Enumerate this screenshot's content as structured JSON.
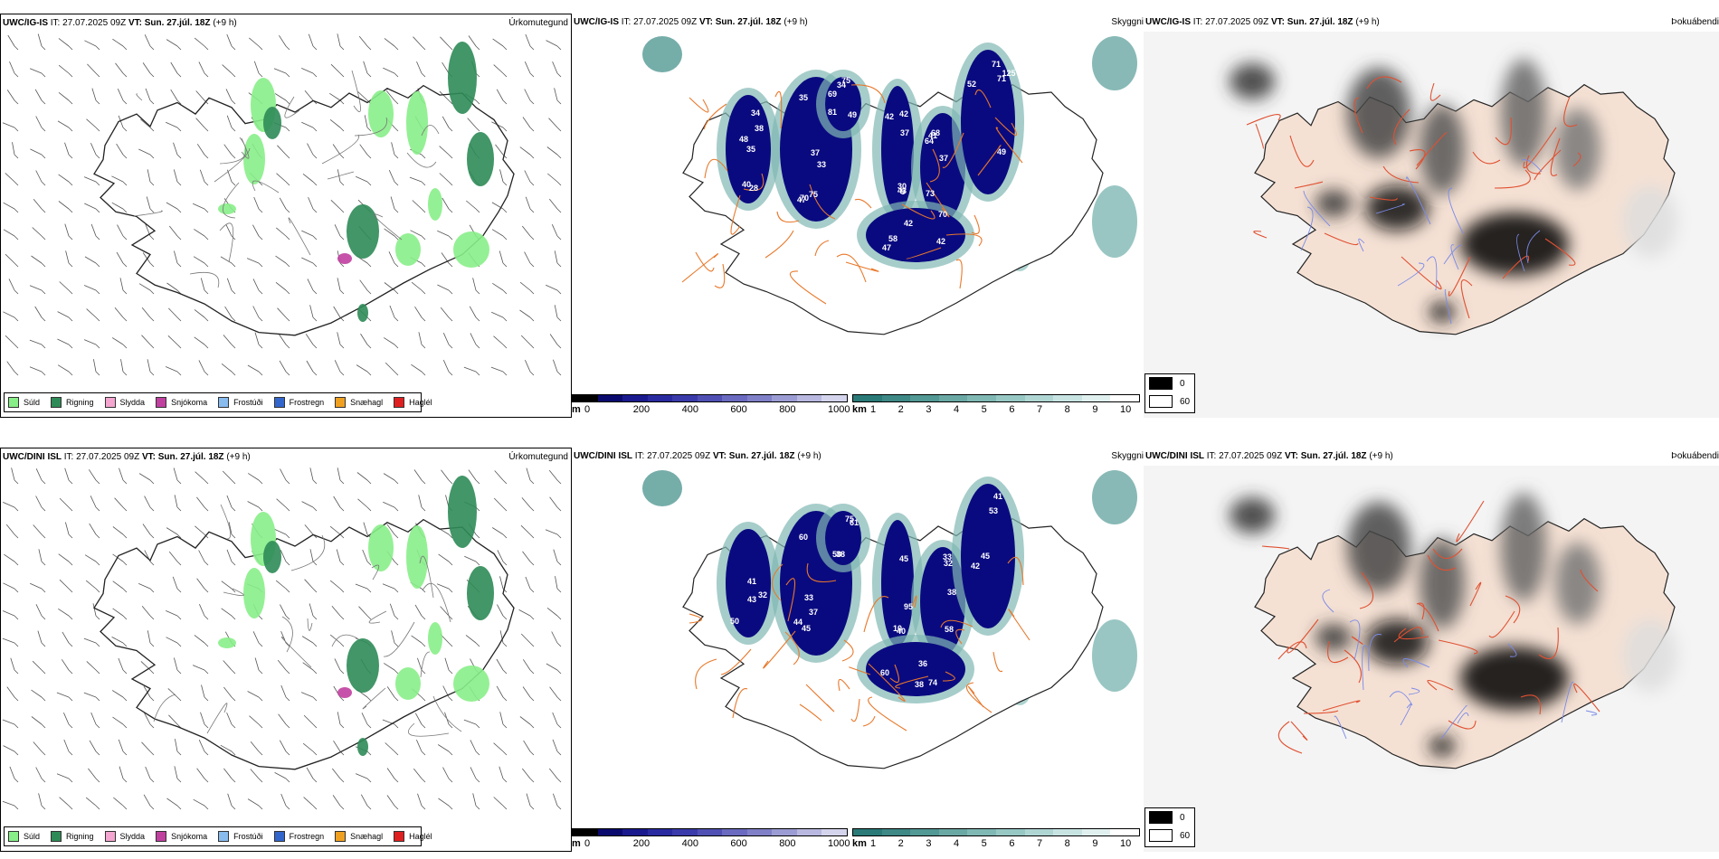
{
  "rows": [
    {
      "model": "UWC/IG-IS",
      "it": "IT: 27.07.2025 09Z",
      "vt": "VT: Sun. 27.júl. 18Z",
      "lead": "(+9 h)",
      "precip_title": "Úrkomutegund",
      "cloud_title": "Skyggni",
      "dew_title": "Þokuábendi",
      "cloud_labels": [
        "35",
        "38",
        "43",
        "64",
        "71",
        "47",
        "49",
        "37",
        "34",
        "42",
        "73",
        "71",
        "58",
        "69",
        "75",
        "35",
        "37",
        "68",
        "52",
        "42",
        "75",
        "47",
        "48",
        "30",
        "41",
        "125",
        "70",
        "34",
        "33",
        "40",
        "42",
        "37",
        "49",
        "42",
        "81",
        "70",
        "28",
        "5"
      ]
    },
    {
      "model": "UWC/DINI ISL",
      "it": "IT: 27.07.2025 09Z",
      "vt": "VT: Sun. 27.júl. 18Z",
      "lead": "(+9 h)",
      "precip_title": "Úrkomutegund",
      "cloud_title": "Skyggni",
      "dew_title": "Þokuábendi",
      "cloud_labels": [
        "45",
        "41",
        "40",
        "32",
        "53",
        "74",
        "38",
        "44",
        "50",
        "95",
        "33",
        "42",
        "38",
        "50",
        "60",
        "43",
        "10",
        "58",
        "45",
        "36",
        "75",
        "33",
        "32",
        "45",
        "38",
        "41",
        "60",
        "61",
        "37"
      ]
    }
  ],
  "precip_legend": [
    {
      "label": "Súld",
      "color": "#88ee88"
    },
    {
      "label": "Rigning",
      "color": "#2e8b57"
    },
    {
      "label": "Slydda",
      "color": "#f4a6d0"
    },
    {
      "label": "Snjókoma",
      "color": "#c040a0"
    },
    {
      "label": "Frostúði",
      "color": "#88bbee"
    },
    {
      "label": "Frostregn",
      "color": "#3366cc"
    },
    {
      "label": "Snæhagl",
      "color": "#f0a020"
    },
    {
      "label": "Haglél",
      "color": "#e02020"
    }
  ],
  "cloud_base_bar": {
    "unit": "m",
    "ticks": [
      "0",
      "200",
      "400",
      "600",
      "800",
      "1000"
    ]
  },
  "visibility_bar": {
    "unit": "km",
    "ticks": [
      "1",
      "2",
      "3",
      "4",
      "5",
      "6",
      "7",
      "8",
      "9",
      "10"
    ]
  },
  "dew_legend": [
    "0",
    "60"
  ],
  "colors": {
    "cloud_base": [
      "#000000",
      "#0a0a6e",
      "#1a1a8e",
      "#2a2aa0",
      "#3a3aaa",
      "#5050b4",
      "#6a6ac0",
      "#8080c8",
      "#9c9cd4",
      "#b8b8e0",
      "#d4d4ec"
    ],
    "visibility": [
      "#2a7a78",
      "#3e8886",
      "#529894",
      "#6aa8a4",
      "#80b8b4",
      "#98c8c4",
      "#b0d6d4",
      "#c8e4e2",
      "#e0f0ef",
      "#ffffff"
    ],
    "land": "#f5e1d4",
    "roads": "#e8782a",
    "rivers": "#7a8ae8",
    "low_cloud": "#0a0a80"
  }
}
